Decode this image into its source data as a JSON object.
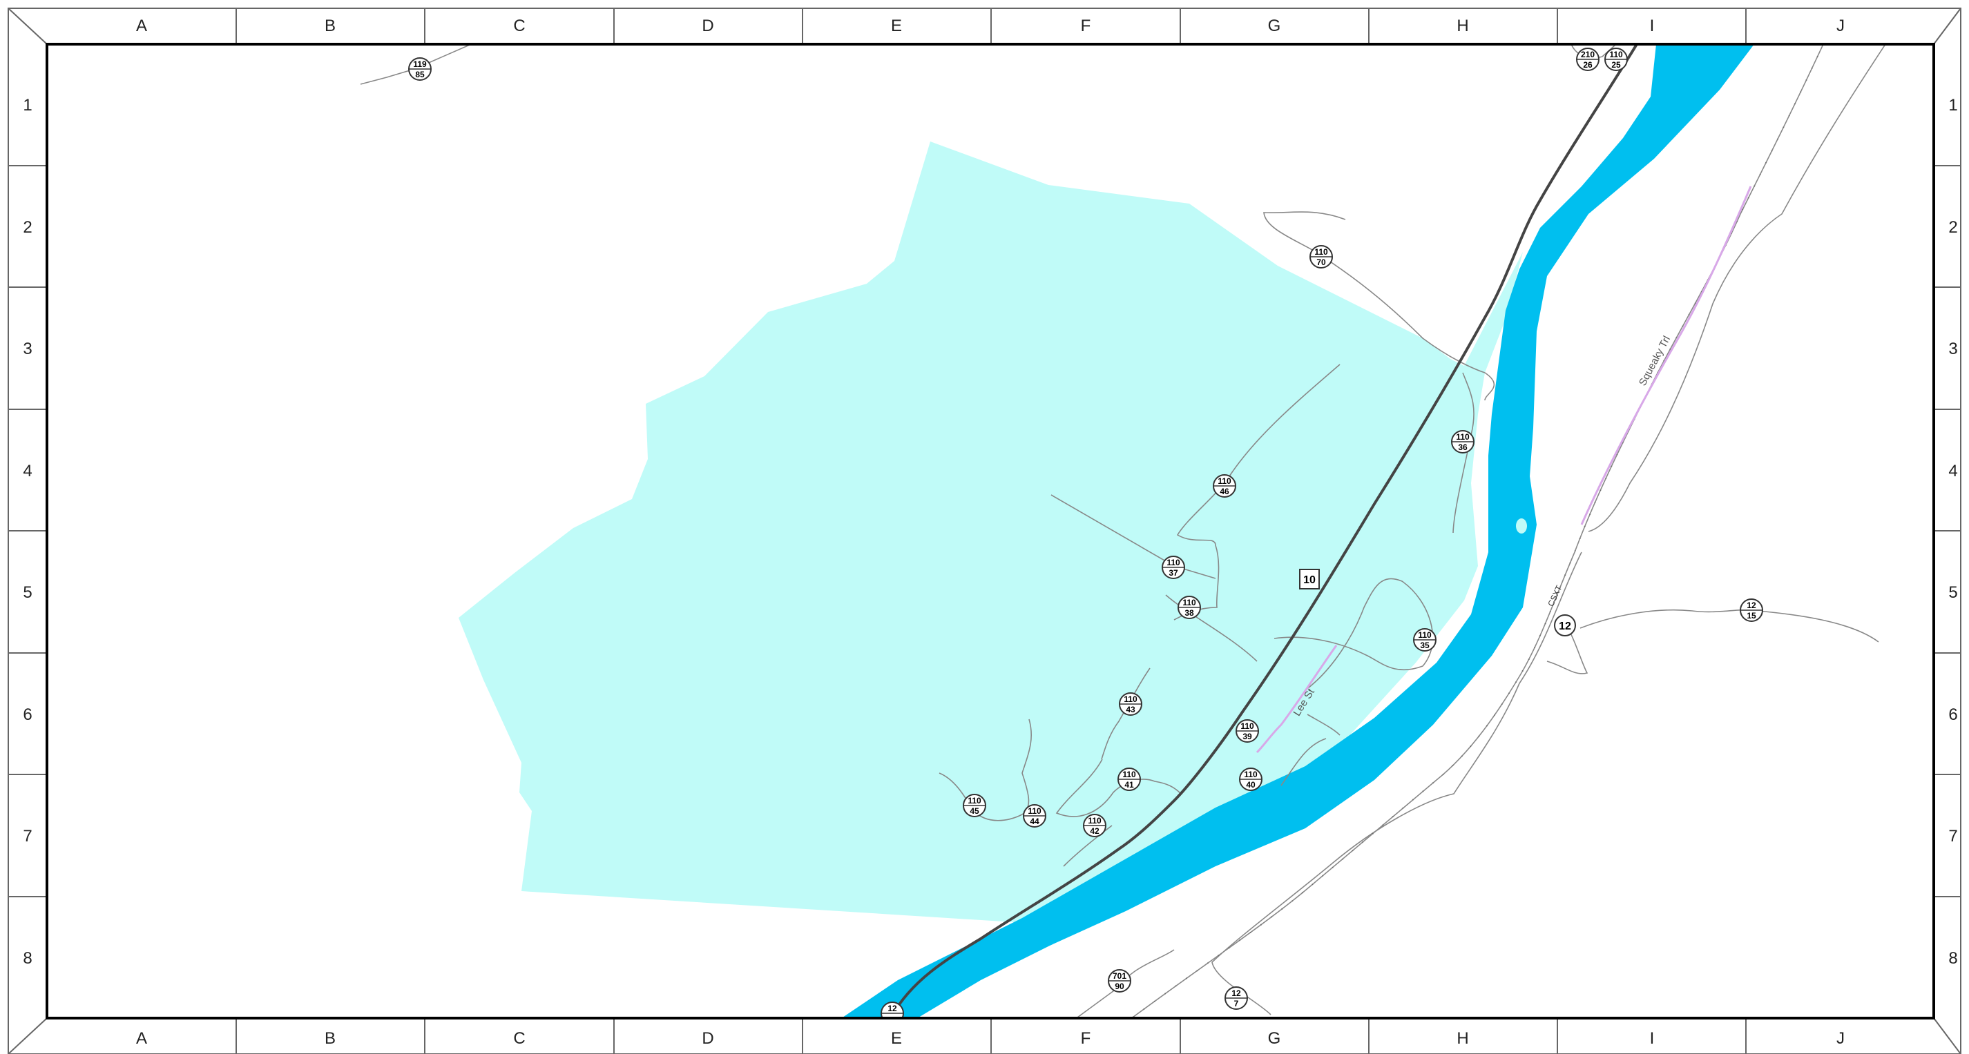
{
  "map": {
    "columns": [
      "A",
      "B",
      "C",
      "D",
      "E",
      "F",
      "G",
      "H",
      "I",
      "J"
    ],
    "rows": [
      "1",
      "2",
      "3",
      "4",
      "5",
      "6",
      "7",
      "8"
    ],
    "colors": {
      "land_area": "#c0fbf8",
      "river": "#00bfef",
      "highway": "#444444",
      "road": "#888888",
      "street": "#d8a8e8",
      "frame": "#000000"
    },
    "highway_shields": [
      {
        "id": "hwy-10",
        "label": "10",
        "shape": "square"
      },
      {
        "id": "hwy-12",
        "label": "12",
        "shape": "circle"
      }
    ],
    "route_markers": [
      {
        "id": "m-119-85",
        "top": "119",
        "bottom": "85"
      },
      {
        "id": "m-210-26",
        "top": "210",
        "bottom": "26"
      },
      {
        "id": "m-110-25",
        "top": "110",
        "bottom": "25"
      },
      {
        "id": "m-110-70",
        "top": "110",
        "bottom": "70"
      },
      {
        "id": "m-110-36",
        "top": "110",
        "bottom": "36"
      },
      {
        "id": "m-110-46",
        "top": "110",
        "bottom": "46"
      },
      {
        "id": "m-110-37",
        "top": "110",
        "bottom": "37"
      },
      {
        "id": "m-110-38",
        "top": "110",
        "bottom": "38"
      },
      {
        "id": "m-110-35",
        "top": "110",
        "bottom": "35"
      },
      {
        "id": "m-110-43",
        "top": "110",
        "bottom": "43"
      },
      {
        "id": "m-110-39",
        "top": "110",
        "bottom": "39"
      },
      {
        "id": "m-110-41",
        "top": "110",
        "bottom": "41"
      },
      {
        "id": "m-110-40",
        "top": "110",
        "bottom": "40"
      },
      {
        "id": "m-110-45",
        "top": "110",
        "bottom": "45"
      },
      {
        "id": "m-110-44",
        "top": "110",
        "bottom": "44"
      },
      {
        "id": "m-110-42",
        "top": "110",
        "bottom": "42"
      },
      {
        "id": "m-12-15",
        "top": "12",
        "bottom": "15"
      },
      {
        "id": "m-701-90",
        "top": "701",
        "bottom": "90"
      },
      {
        "id": "m-12-7",
        "top": "12",
        "bottom": "7"
      },
      {
        "id": "m-12-bottom",
        "top": "12",
        "bottom": ""
      }
    ],
    "labels": {
      "lee_st": "Lee St",
      "squeaky_trl": "Squeaky Trl",
      "csxt": "CSXT"
    }
  }
}
